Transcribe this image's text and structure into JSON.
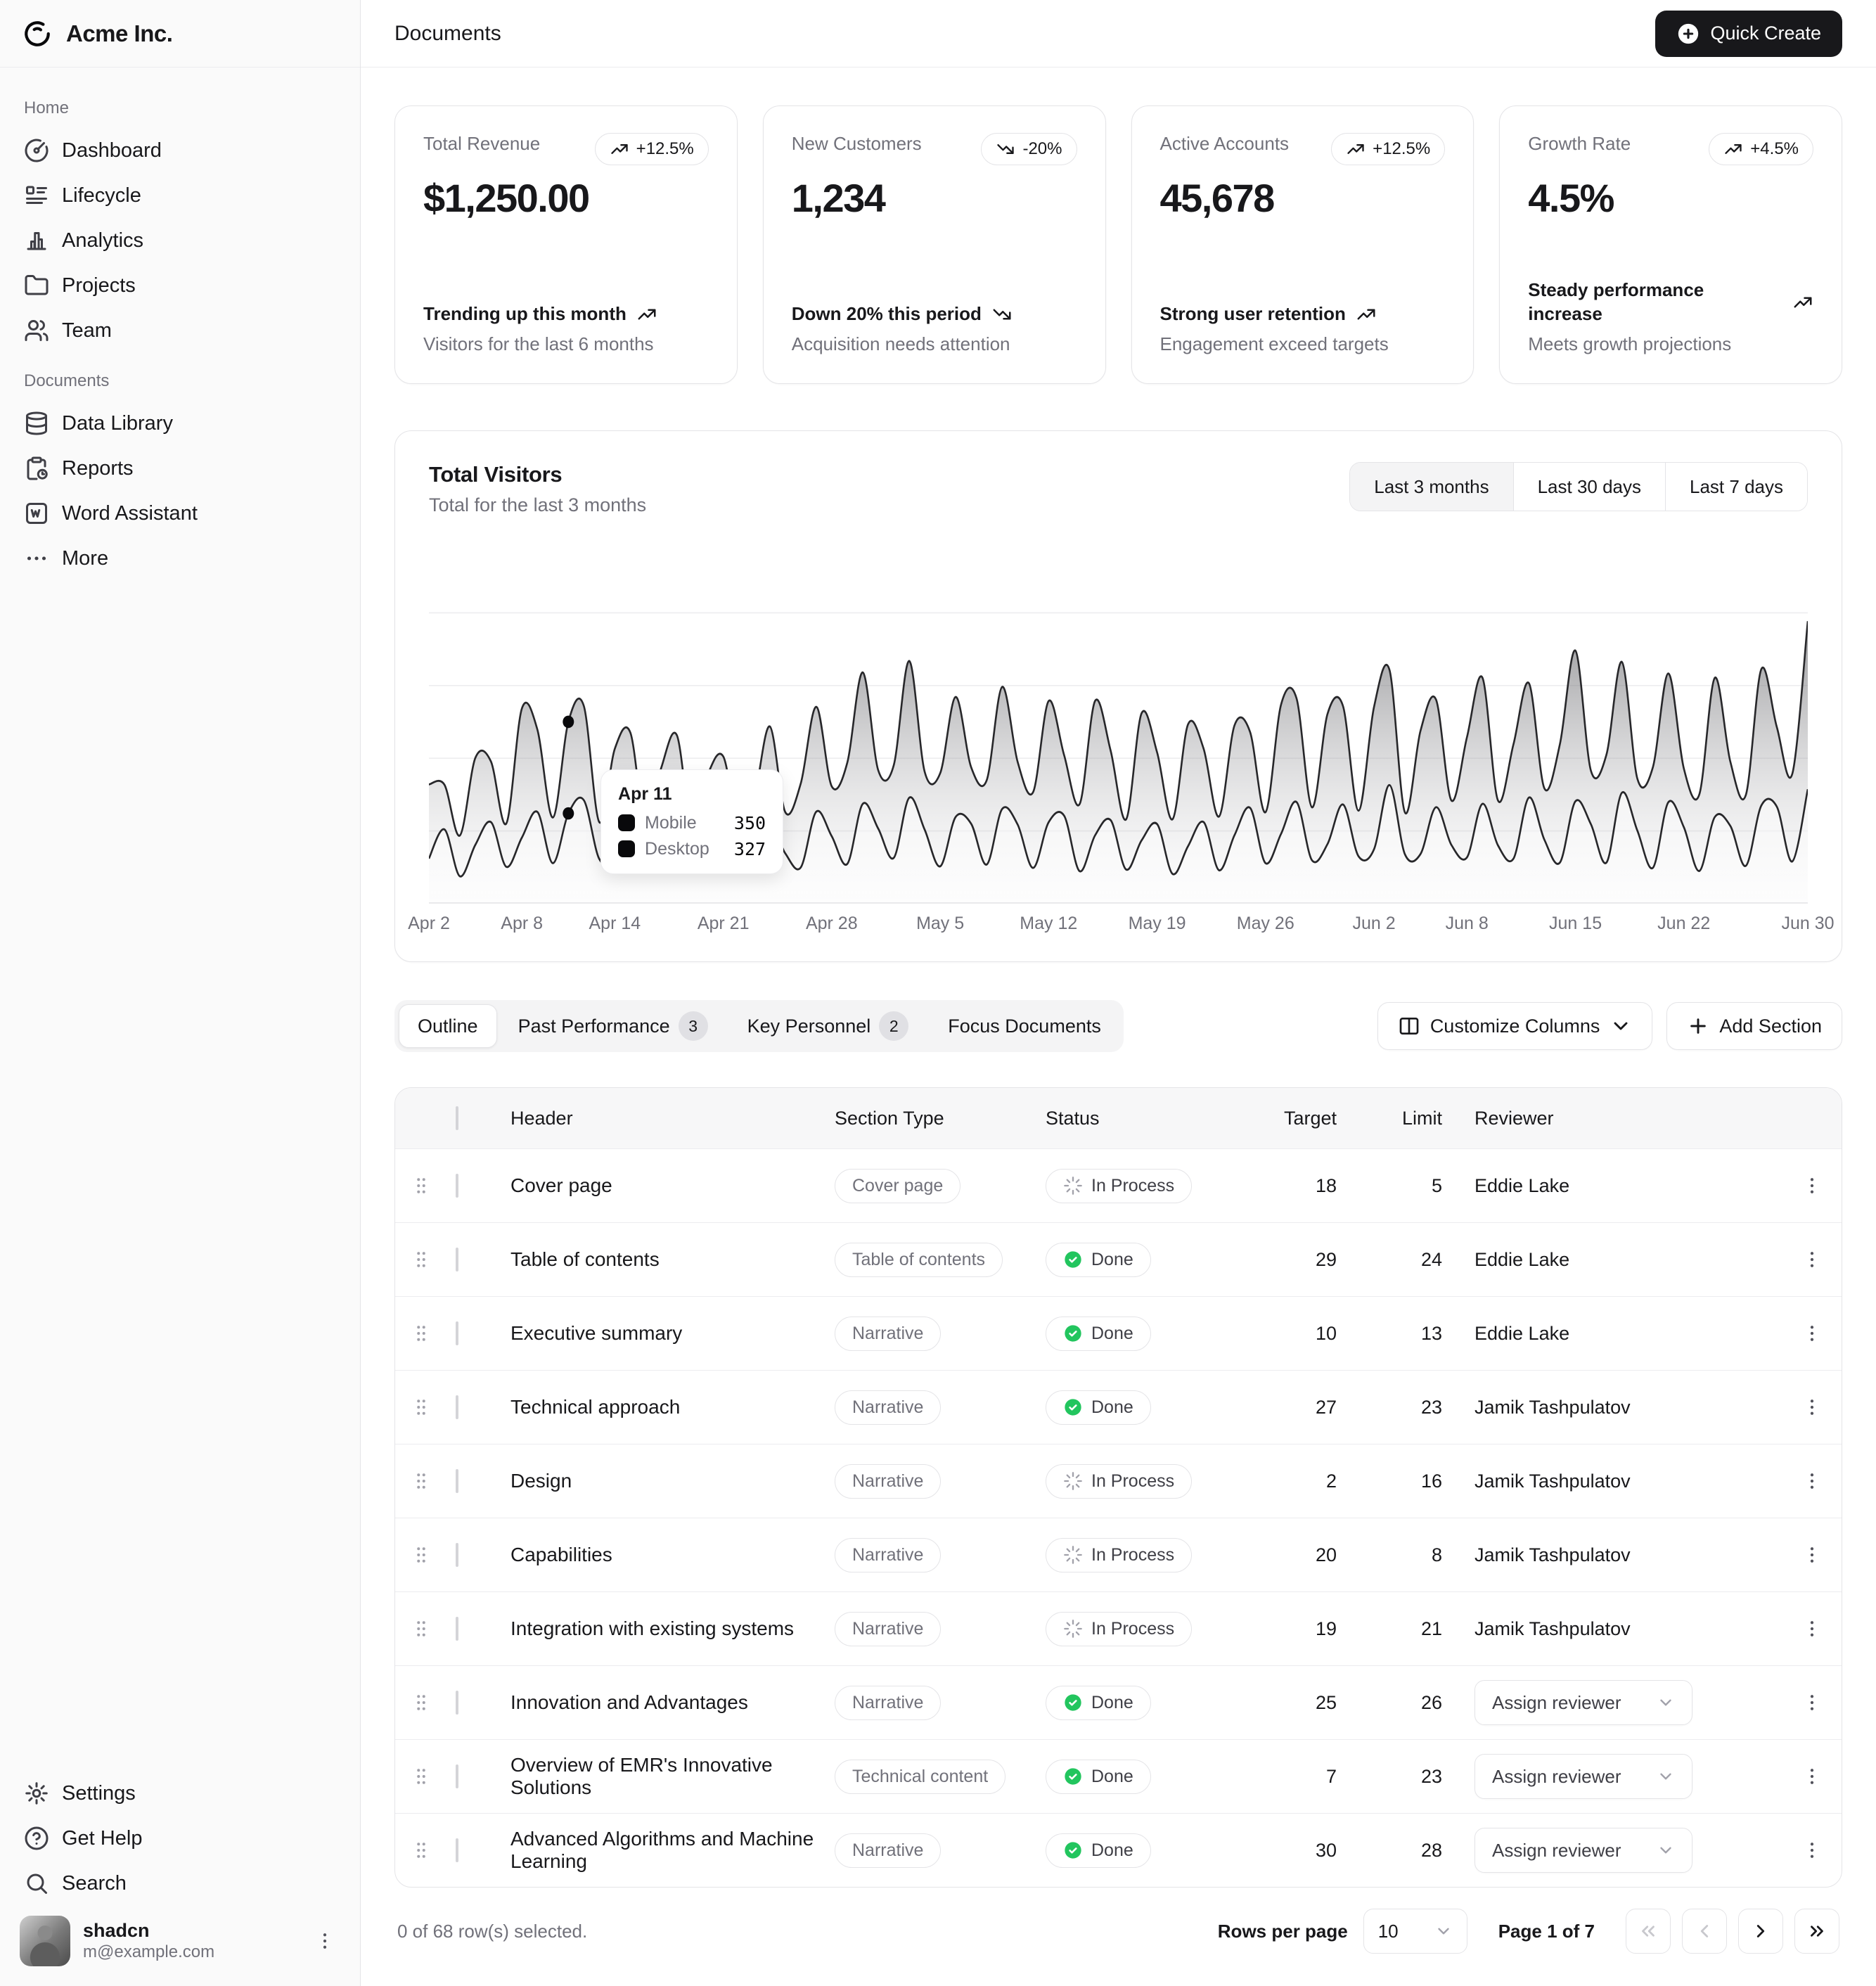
{
  "sidebar": {
    "brand": "Acme Inc.",
    "groups": [
      {
        "label": "Home",
        "items": [
          {
            "label": "Dashboard",
            "icon": "gauge-icon"
          },
          {
            "label": "Lifecycle",
            "icon": "list-details-icon"
          },
          {
            "label": "Analytics",
            "icon": "bar-chart-icon"
          },
          {
            "label": "Projects",
            "icon": "folder-icon"
          },
          {
            "label": "Team",
            "icon": "users-icon"
          }
        ]
      },
      {
        "label": "Documents",
        "items": [
          {
            "label": "Data Library",
            "icon": "database-icon"
          },
          {
            "label": "Reports",
            "icon": "clipboard-icon"
          },
          {
            "label": "Word Assistant",
            "icon": "file-word-icon"
          },
          {
            "label": "More",
            "icon": "ellipsis-icon"
          }
        ]
      }
    ],
    "footer_items": [
      {
        "label": "Settings",
        "icon": "gear-icon"
      },
      {
        "label": "Get Help",
        "icon": "help-circle-icon"
      },
      {
        "label": "Search",
        "icon": "search-icon"
      }
    ],
    "user": {
      "name": "shadcn",
      "email": "m@example.com"
    }
  },
  "header": {
    "title": "Documents",
    "quick_create_label": "Quick Create"
  },
  "stat_cards": [
    {
      "title": "Total Revenue",
      "badge": "+12.5%",
      "trend": "up",
      "value": "$1,250.00",
      "footnote": "Trending up this month",
      "description": "Visitors for the last 6 months"
    },
    {
      "title": "New Customers",
      "badge": "-20%",
      "trend": "down",
      "value": "1,234",
      "footnote": "Down 20% this period",
      "description": "Acquisition needs attention"
    },
    {
      "title": "Active Accounts",
      "badge": "+12.5%",
      "trend": "up",
      "value": "45,678",
      "footnote": "Strong user retention",
      "description": "Engagement exceed targets"
    },
    {
      "title": "Growth Rate",
      "badge": "+4.5%",
      "trend": "up",
      "value": "4.5%",
      "footnote": "Steady performance increase",
      "description": "Meets growth projections"
    }
  ],
  "visitors_card": {
    "title": "Total Visitors",
    "subtitle": "Total for the last 3 months",
    "ranges": [
      "Last 3 months",
      "Last 30 days",
      "Last 7 days"
    ],
    "active_range": "Last 3 months"
  },
  "chart_data": {
    "type": "area",
    "stacked": true,
    "x_tick_labels": [
      "Apr 2",
      "Apr 8",
      "Apr 14",
      "Apr 21",
      "Apr 28",
      "May 5",
      "May 12",
      "May 19",
      "May 26",
      "Jun 2",
      "Jun 8",
      "Jun 15",
      "Jun 22",
      "Jun 30"
    ],
    "x_tick_days": [
      0,
      6,
      12,
      19,
      26,
      33,
      40,
      47,
      54,
      61,
      67,
      74,
      81,
      89
    ],
    "series": [
      {
        "name": "Desktop",
        "weekly_values": [
          220,
          340,
          280,
          220,
          380,
          340,
          310,
          280,
          340,
          370,
          340,
          390,
          330,
          430
        ]
      },
      {
        "name": "Mobile",
        "weekly_values": [
          260,
          450,
          380,
          320,
          530,
          480,
          450,
          410,
          470,
          510,
          480,
          540,
          450,
          590
        ]
      }
    ],
    "highlight": {
      "label": "Apr 11",
      "day_index": 9,
      "mobile": 350,
      "desktop": 327
    },
    "ylim": [
      0,
      1300
    ],
    "grid": "horizontal",
    "legend": "tooltip-only",
    "colors": {
      "stroke": "#27272a",
      "fill_top": "#6b6b6b",
      "fill_bottom": "#f5f5f5"
    }
  },
  "tooltip": {
    "date": "Apr 11",
    "rows": [
      {
        "label": "Mobile",
        "value": "350"
      },
      {
        "label": "Desktop",
        "value": "327"
      }
    ]
  },
  "tabs": {
    "items": [
      {
        "label": "Outline",
        "active": true
      },
      {
        "label": "Past Performance",
        "count": "3"
      },
      {
        "label": "Key Personnel",
        "count": "2"
      },
      {
        "label": "Focus Documents"
      }
    ],
    "customize_columns_label": "Customize Columns",
    "add_section_label": "Add Section"
  },
  "table": {
    "columns": [
      "Header",
      "Section Type",
      "Status",
      "Target",
      "Limit",
      "Reviewer"
    ],
    "assign_label": "Assign reviewer",
    "rows": [
      {
        "header": "Cover page",
        "type": "Cover page",
        "status": "In Process",
        "target": "18",
        "limit": "5",
        "reviewer": "Eddie Lake"
      },
      {
        "header": "Table of contents",
        "type": "Table of contents",
        "status": "Done",
        "target": "29",
        "limit": "24",
        "reviewer": "Eddie Lake"
      },
      {
        "header": "Executive summary",
        "type": "Narrative",
        "status": "Done",
        "target": "10",
        "limit": "13",
        "reviewer": "Eddie Lake"
      },
      {
        "header": "Technical approach",
        "type": "Narrative",
        "status": "Done",
        "target": "27",
        "limit": "23",
        "reviewer": "Jamik Tashpulatov"
      },
      {
        "header": "Design",
        "type": "Narrative",
        "status": "In Process",
        "target": "2",
        "limit": "16",
        "reviewer": "Jamik Tashpulatov"
      },
      {
        "header": "Capabilities",
        "type": "Narrative",
        "status": "In Process",
        "target": "20",
        "limit": "8",
        "reviewer": "Jamik Tashpulatov"
      },
      {
        "header": "Integration with existing systems",
        "type": "Narrative",
        "status": "In Process",
        "target": "19",
        "limit": "21",
        "reviewer": "Jamik Tashpulatov"
      },
      {
        "header": "Innovation and Advantages",
        "type": "Narrative",
        "status": "Done",
        "target": "25",
        "limit": "26",
        "reviewer": null
      },
      {
        "header": "Overview of EMR's Innovative Solutions",
        "type": "Technical content",
        "status": "Done",
        "target": "7",
        "limit": "23",
        "reviewer": null
      },
      {
        "header": "Advanced Algorithms and Machine Learning",
        "type": "Narrative",
        "status": "Done",
        "target": "30",
        "limit": "28",
        "reviewer": null
      }
    ]
  },
  "footer": {
    "selection": "0 of 68 row(s) selected.",
    "rows_per_page_label": "Rows per page",
    "rows_per_page": "10",
    "page_status": "Page 1 of 7"
  }
}
